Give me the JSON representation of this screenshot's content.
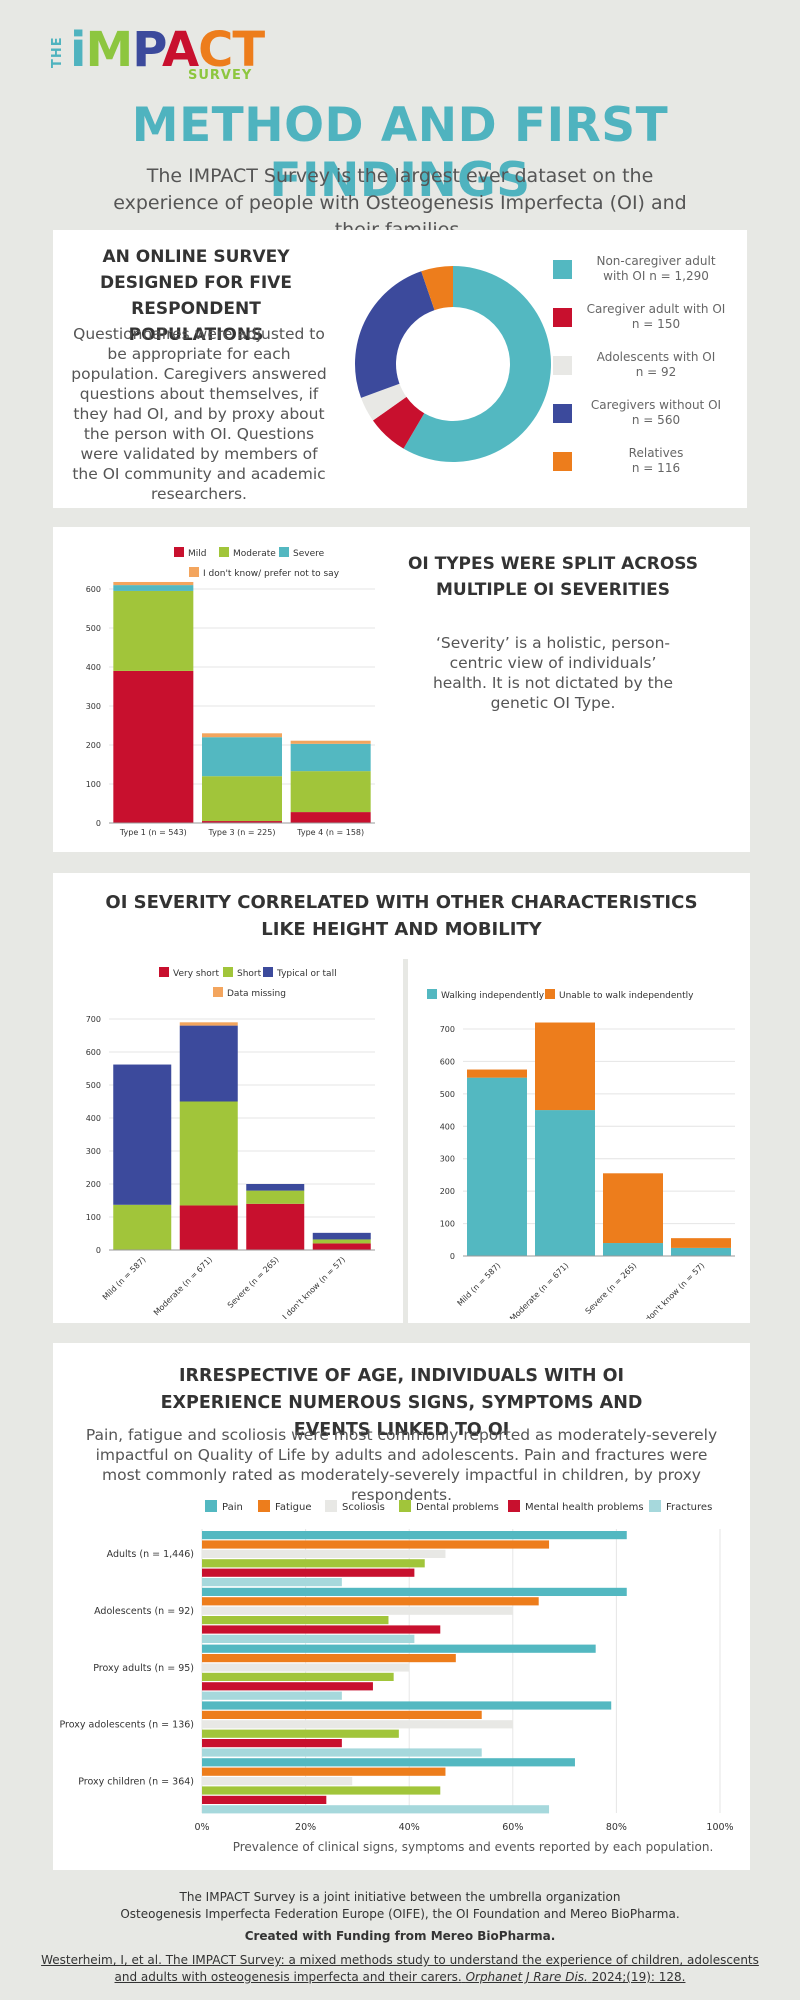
{
  "logo": {
    "the": "THE",
    "letters": [
      "i",
      "M",
      "P",
      "A",
      "C",
      "T"
    ],
    "sub": "SURVEY"
  },
  "title": "METHOD AND FIRST FINDINGS",
  "intro": "The IMPACT Survey is the largest ever dataset on the experience of people with Osteogenesis Imperfecta (OI) and their families.",
  "colors": {
    "teal": "#53b8c1",
    "crimson": "#c8102e",
    "lightgray": "#e8e8e5",
    "navy": "#3c4a9c",
    "orange": "#ed7d1c",
    "green": "#a1c53a",
    "peach": "#f3a55e",
    "paleteal": "#a6d8dc"
  },
  "section1": {
    "heading": "AN ONLINE SURVEY DESIGNED FOR FIVE RESPONDENT POPULATIONS",
    "text": "Questionnaires were adjusted to be appropriate for each population. Caregivers answered questions about themselves, if they had OI, and by proxy about the person with OI. Questions were validated by members of the OI community and academic researchers.",
    "legend": [
      {
        "line1": "Non-caregiver adult",
        "line2": "with OI n = 1,290"
      },
      {
        "line1": "Caregiver adult with OI",
        "line2": "n = 150"
      },
      {
        "line1": "Adolescents with OI",
        "line2": "n = 92"
      },
      {
        "line1": "Caregivers without OI",
        "line2": "n = 560"
      },
      {
        "line1": "Relatives",
        "line2": "n = 116"
      }
    ]
  },
  "section2": {
    "heading": "OI TYPES WERE SPLIT ACROSS MULTIPLE OI SEVERITIES",
    "text": "‘Severity’ is a holistic, person-centric view of individuals’ health. It is not dictated by the genetic OI Type."
  },
  "section3": {
    "heading": "OI SEVERITY CORRELATED WITH OTHER CHARACTERISTICS LIKE HEIGHT AND MOBILITY"
  },
  "section4": {
    "heading": "IRRESPECTIVE OF AGE, INDIVIDUALS WITH OI EXPERIENCE NUMEROUS SIGNS, SYMPTOMS AND EVENTS LINKED TO OI",
    "text": "Pain, fatigue and scoliosis were most commonly reported as moderately-severely impactful on Quality of Life by adults and adolescents. Pain and fractures were most commonly rated as moderately-severely impactful in children, by proxy respondents.",
    "caption": "Prevalence of clinical signs, symptoms and events reported by each population."
  },
  "footer": {
    "line1": "The IMPACT Survey is a joint initiative between the umbrella organization",
    "line2": "Osteogenesis Imperfecta Federation Europe (OIFE), the OI Foundation and Mereo BioPharma.",
    "funding": "Created with Funding from Mereo BioPharma.",
    "ref1": "Westerheim, I, et al. The IMPACT Survey: a mixed methods study to understand the experience of children, adolescents",
    "ref2a": "and adults with osteogenesis imperfecta and their carers.",
    "ref2b": "Orphanet J Rare Dis.",
    "ref2c": "2024;(19): 128."
  },
  "chart_data": [
    {
      "type": "pie",
      "title": "Respondent populations",
      "categories": [
        "Non-caregiver adult with OI",
        "Caregiver adult with OI",
        "Adolescents with OI",
        "Caregivers without OI",
        "Relatives"
      ],
      "values": [
        1290,
        150,
        92,
        560,
        116
      ],
      "donut": true
    },
    {
      "type": "bar",
      "stacked": true,
      "categories": [
        "Type 1 (n = 543)",
        "Type 3 (n = 225)",
        "Type 4 (n = 158)"
      ],
      "series": [
        {
          "name": "Mild",
          "values": [
            390,
            5,
            28
          ]
        },
        {
          "name": "Moderate",
          "values": [
            205,
            115,
            105
          ]
        },
        {
          "name": "Severe",
          "values": [
            15,
            100,
            70
          ]
        },
        {
          "name": "I don't know/ prefer not to say",
          "values": [
            8,
            10,
            8
          ]
        }
      ],
      "ylim": [
        0,
        600
      ],
      "yticks": [
        "0",
        "100",
        "200",
        "300",
        "400",
        "500",
        "600"
      ]
    },
    {
      "type": "bar",
      "stacked": true,
      "categories": [
        "Mild (n = 587)",
        "Moderate (n = 671)",
        "Severe (n = 265)",
        "I don't know (n = 57)"
      ],
      "series": [
        {
          "name": "Very short",
          "values": [
            0,
            135,
            140,
            20
          ]
        },
        {
          "name": "Short",
          "values": [
            137,
            315,
            40,
            12
          ]
        },
        {
          "name": "Typical or tall",
          "values": [
            425,
            230,
            20,
            20
          ]
        },
        {
          "name": "Data missing",
          "values": [
            0,
            10,
            0,
            0
          ]
        }
      ],
      "ylim": [
        0,
        700
      ],
      "yticks": [
        "0",
        "100",
        "200",
        "300",
        "400",
        "500",
        "600",
        "700"
      ]
    },
    {
      "type": "bar",
      "stacked": true,
      "categories": [
        "Mild (n = 587)",
        "Moderate (n = 671)",
        "Severe (n = 265)",
        "I don't know (n = 57)"
      ],
      "series": [
        {
          "name": "Walking independently",
          "values": [
            550,
            450,
            40,
            25
          ]
        },
        {
          "name": "Unable to walk independently",
          "values": [
            25,
            270,
            215,
            30
          ]
        }
      ],
      "ylim": [
        0,
        700
      ],
      "yticks": [
        "0",
        "100",
        "200",
        "300",
        "400",
        "500",
        "600",
        "700"
      ]
    },
    {
      "type": "bar",
      "orientation": "horizontal",
      "categories": [
        "Adults (n = 1,446)",
        "Adolescents (n = 92)",
        "Proxy adults (n = 95)",
        "Proxy adolescents (n = 136)",
        "Proxy children (n = 364)"
      ],
      "series": [
        {
          "name": "Pain",
          "values": [
            82,
            82,
            76,
            79,
            72
          ]
        },
        {
          "name": "Fatigue",
          "values": [
            67,
            65,
            49,
            54,
            47
          ]
        },
        {
          "name": "Scoliosis",
          "values": [
            47,
            60,
            40,
            60,
            29
          ]
        },
        {
          "name": "Dental problems",
          "values": [
            43,
            36,
            37,
            38,
            46
          ]
        },
        {
          "name": "Mental health problems",
          "values": [
            41,
            46,
            33,
            27,
            24
          ]
        },
        {
          "name": "Fractures",
          "values": [
            27,
            41,
            27,
            54,
            67
          ]
        }
      ],
      "xlim": [
        0,
        100
      ],
      "xticks": [
        "0%",
        "20%",
        "40%",
        "60%",
        "80%",
        "100%"
      ]
    }
  ],
  "legends": {
    "chart2": [
      "Mild",
      "Moderate",
      "Severe",
      "I don't know/ prefer not to say"
    ],
    "chart3": [
      "Very short",
      "Short",
      "Typical or tall",
      "Data missing"
    ],
    "chart4": [
      "Walking independently",
      "Unable to walk independently"
    ],
    "chart5": [
      "Pain",
      "Fatigue",
      "Scoliosis",
      "Dental problems",
      "Mental health problems",
      "Fractures"
    ]
  }
}
